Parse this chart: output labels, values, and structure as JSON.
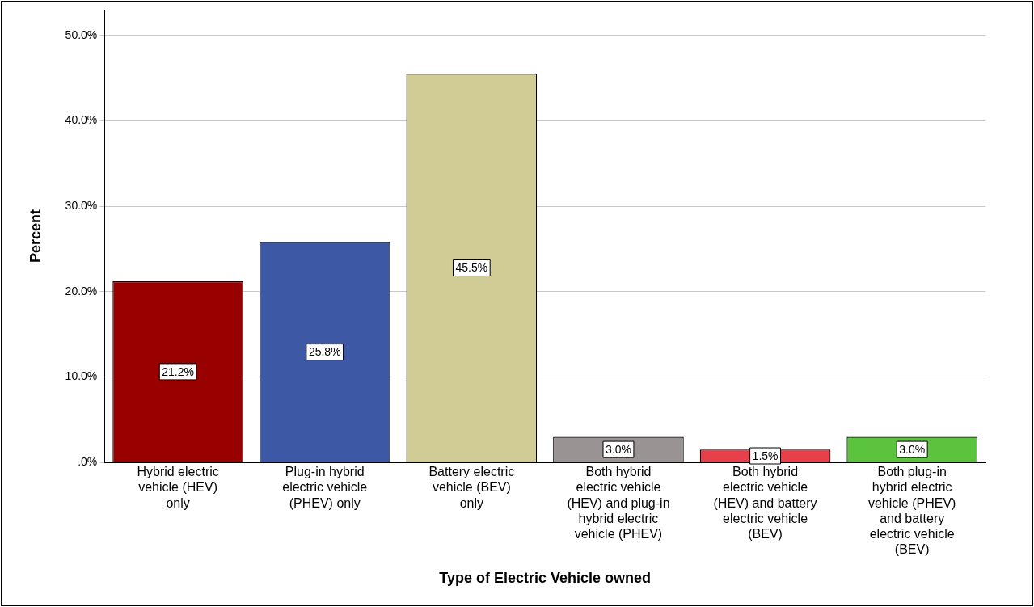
{
  "chart_data": {
    "type": "bar",
    "xlabel": "Type of Electric Vehicle owned",
    "ylabel": "Percent",
    "categories": [
      "Hybrid electric vehicle (HEV) only",
      "Plug-in hybrid electric vehicle (PHEV) only",
      "Battery electric vehicle (BEV) only",
      "Both hybrid electric vehicle (HEV) and plug-in hybrid electric vehicle (PHEV)",
      "Both hybrid electric vehicle (HEV) and battery electric vehicle (BEV)",
      "Both plug-in hybrid electric vehicle (PHEV) and battery electric vehicle (BEV)"
    ],
    "values": [
      21.2,
      25.8,
      45.5,
      3.0,
      1.5,
      3.0
    ],
    "value_labels": [
      "21.2%",
      "25.8%",
      "45.5%",
      "3.0%",
      "1.5%",
      "3.0%"
    ],
    "colors": [
      "#990000",
      "#3d59a6",
      "#d1cb95",
      "#999393",
      "#e8404a",
      "#5cc33e"
    ],
    "ylim": [
      0,
      53
    ],
    "yticks": [
      {
        "value": 0,
        "label": ".0%"
      },
      {
        "value": 10,
        "label": "10.0%"
      },
      {
        "value": 20,
        "label": "20.0%"
      },
      {
        "value": 30,
        "label": "30.0%"
      },
      {
        "value": 40,
        "label": "40.0%"
      },
      {
        "value": 50,
        "label": "50.0%"
      }
    ],
    "grid": "y",
    "legend": false
  }
}
